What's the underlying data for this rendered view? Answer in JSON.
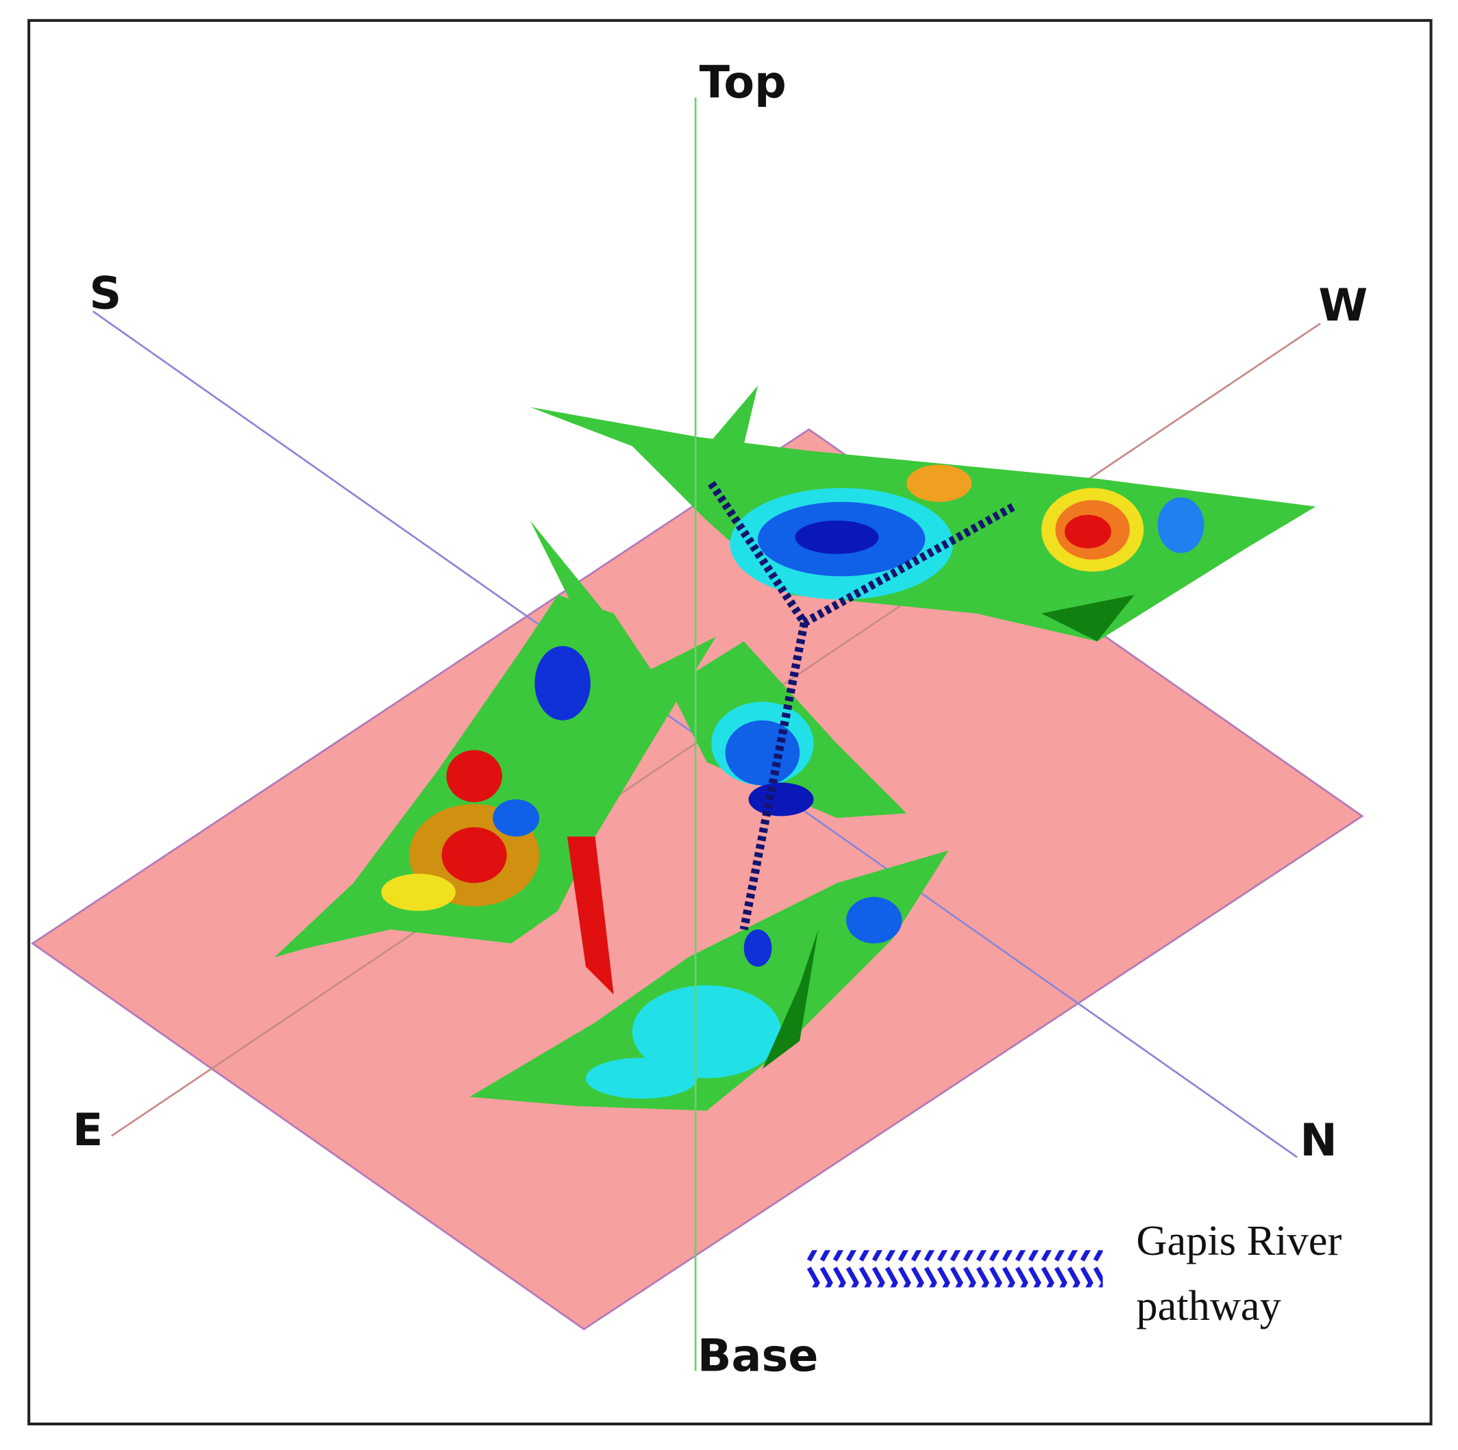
{
  "axes": {
    "top": "Top",
    "base": "Base",
    "south": "S",
    "west": "W",
    "east": "E",
    "north": "N"
  },
  "legend": {
    "label_lines": [
      "Gapis River",
      "pathway"
    ]
  }
}
